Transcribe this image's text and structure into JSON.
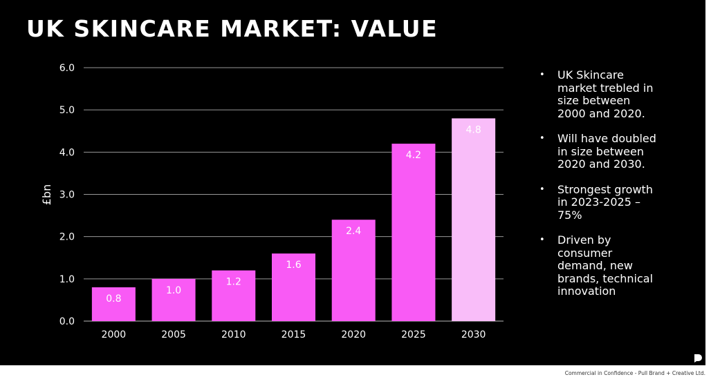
{
  "title": "UK SKINCARE MARKET: VALUE",
  "chart_data": {
    "type": "bar",
    "title": "",
    "ylabel": "£bn",
    "xlabel": "",
    "categories": [
      "2000",
      "2005",
      "2010",
      "2015",
      "2020",
      "2025",
      "2030"
    ],
    "values": [
      0.8,
      1.0,
      1.2,
      1.6,
      2.4,
      4.2,
      4.8
    ],
    "data_labels": [
      "0.8",
      "1.0",
      "1.2",
      "1.6",
      "2.4",
      "4.2",
      "4.8"
    ],
    "yticks": [
      "0.0",
      "1.0",
      "2.0",
      "3.0",
      "4.0",
      "5.0",
      "6.0"
    ],
    "ylim": [
      0,
      6
    ],
    "grid": true,
    "colors": [
      "#f95af5",
      "#f95af5",
      "#f95af5",
      "#f95af5",
      "#f95af5",
      "#f95af5",
      "#f9bdf9"
    ]
  },
  "bullets": [
    "UK Skincare market trebled in size between 2000 and 2020.",
    "Will have doubled in size between 2020 and 2030.",
    "Strongest growth in 2023-2025 – 75%",
    "Driven by consumer demand, new brands, technical innovation"
  ],
  "footer": "Commercial in Confidence - Pull Brand + Creative Ltd.",
  "logo_icon": "speech-bubble-logo-icon"
}
